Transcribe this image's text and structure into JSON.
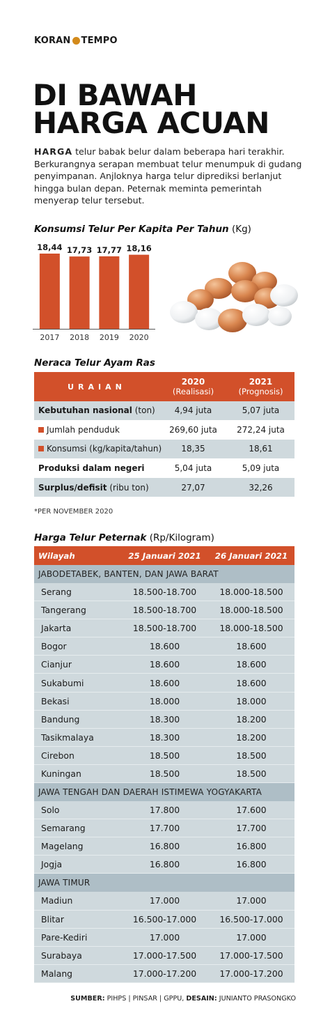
{
  "brand": {
    "left": "KORAN",
    "right": "TEMPO"
  },
  "headline": {
    "line1": "DI BAWAH",
    "line2": "HARGA ACUAN"
  },
  "lead": {
    "keyword": "HARGA",
    "text": " telur babak belur dalam beberapa hari terakhir. Berkurangnya serapan membuat telur menumpuk di gudang penyimpanan. Anjloknya harga telur diprediksi berlanjut hingga bulan depan. Peternak meminta pemerintah menyerap telur tersebut."
  },
  "consumption": {
    "title": "Konsumsi Telur Per Kapita Per Tahun",
    "unit": " (Kg)"
  },
  "chart_data": {
    "type": "bar",
    "title": "Konsumsi Telur Per Kapita Per Tahun (Kg)",
    "categories": [
      "2017",
      "2018",
      "2019",
      "2020"
    ],
    "values": [
      18.44,
      17.73,
      17.77,
      18.16
    ],
    "value_labels": [
      "18,44",
      "17,73",
      "17,77",
      "18,16"
    ],
    "color": "#d2502a",
    "grid": false,
    "legend": "none"
  },
  "balance": {
    "title": "Neraca Telur Ayam Ras",
    "header": {
      "label": "URAIAN",
      "col2_year": "2020",
      "col2_sub": "(Realisasi)",
      "col3_year": "2021",
      "col3_sub": "(Prognosis)"
    },
    "rows": [
      {
        "label": "Kebutuhan nasional",
        "unit": " (ton)",
        "v2020": "4,94 juta",
        "v2021": "5,07 juta"
      },
      {
        "label": "Jumlah penduduk",
        "unit": "",
        "v2020": "269,60 juta",
        "v2021": "272,24 juta"
      },
      {
        "label": "Konsumsi",
        "unit": " (kg/kapita/tahun)",
        "v2020": "18,35",
        "v2021": "18,61"
      },
      {
        "label": "Produksi dalam negeri",
        "unit": "",
        "v2020": "5,04 juta",
        "v2021": "5,09 juta"
      },
      {
        "label": "Surplus/defisit",
        "unit": " (ribu ton)",
        "v2020": "27,07",
        "v2021": "32,26"
      }
    ],
    "note": "*PER NOVEMBER 2020"
  },
  "prices": {
    "title": "Harga Telur Peternak",
    "unit": " (Rp/Kilogram)",
    "header": {
      "region": "Wilayah",
      "date1": "25 Januari 2021",
      "date2": "26 Januari 2021"
    },
    "groups": [
      {
        "name": "JABODETABEK, BANTEN, DAN JAWA BARAT",
        "rows": [
          [
            "Serang",
            "18.500-18.700",
            "18.000-18.500"
          ],
          [
            "Tangerang",
            "18.500-18.700",
            "18.000-18.500"
          ],
          [
            "Jakarta",
            "18.500-18.700",
            "18.000-18.500"
          ],
          [
            "Bogor",
            "18.600",
            "18.600"
          ],
          [
            "Cianjur",
            "18.600",
            "18.600"
          ],
          [
            "Sukabumi",
            "18.600",
            "18.600"
          ],
          [
            "Bekasi",
            "18.000",
            "18.000"
          ],
          [
            "Bandung",
            "18.300",
            "18.200"
          ],
          [
            "Tasikmalaya",
            "18.300",
            "18.200"
          ],
          [
            "Cirebon",
            "18.500",
            "18.500"
          ],
          [
            "Kuningan",
            "18.500",
            "18.500"
          ]
        ]
      },
      {
        "name": "JAWA TENGAH DAN DAERAH ISTIMEWA YOGYAKARTA",
        "rows": [
          [
            "Solo",
            "17.800",
            "17.600"
          ],
          [
            "Semarang",
            "17.700",
            "17.700"
          ],
          [
            "Magelang",
            "16.800",
            "16.800"
          ],
          [
            "Jogja",
            "16.800",
            "16.800"
          ]
        ]
      },
      {
        "name": "JAWA TIMUR",
        "rows": [
          [
            "Madiun",
            "17.000",
            "17.000"
          ],
          [
            "Blitar",
            "16.500-17.000",
            "16.500-17.000"
          ],
          [
            "Pare-Kediri",
            "17.000",
            "17.000"
          ],
          [
            "Surabaya",
            "17.000-17.500",
            "17.000-17.500"
          ],
          [
            "Malang",
            "17.000-17.200",
            "17.000-17.200"
          ]
        ]
      }
    ]
  },
  "source": {
    "label1": "SUMBER:",
    "text1": " PIHPS | PINSAR | GPPU, ",
    "label2": "DESAIN:",
    "text2": " JUNIANTO PRASONGKO"
  }
}
